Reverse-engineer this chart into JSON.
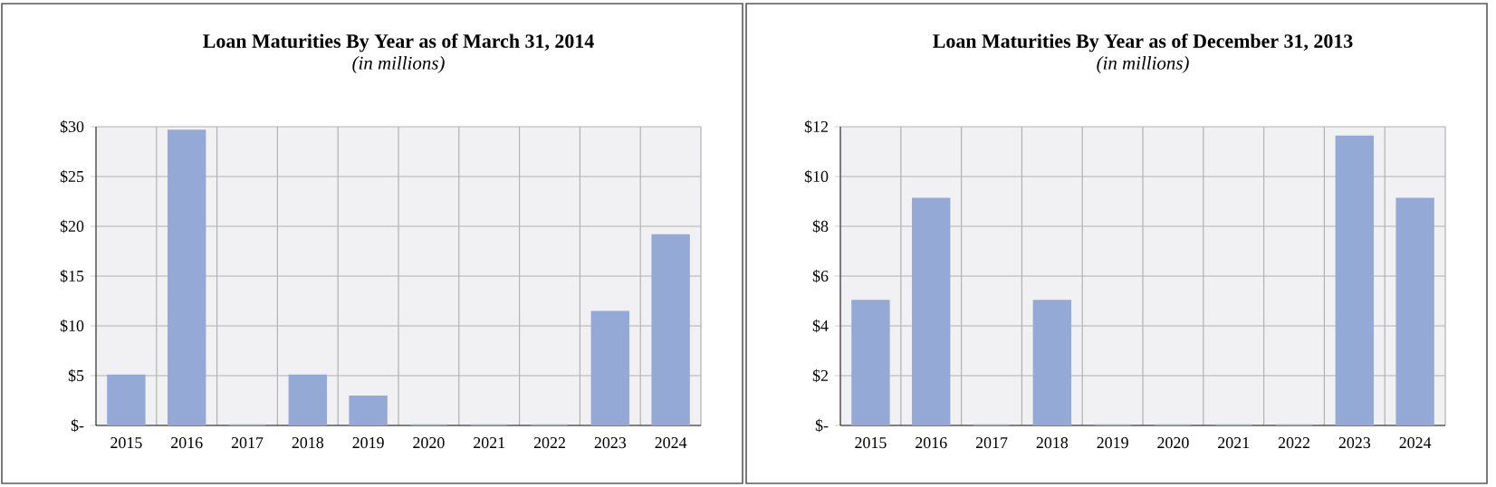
{
  "chart_data": [
    {
      "type": "bar",
      "title": "Loan Maturities By Year as of March 31, 2014",
      "subtitle": "(in millions)",
      "categories": [
        "2015",
        "2016",
        "2017",
        "2018",
        "2019",
        "2020",
        "2021",
        "2022",
        "2023",
        "2024"
      ],
      "values": [
        5,
        29.6,
        0,
        5,
        2.9,
        0,
        0,
        0,
        11.4,
        19.1
      ],
      "color": "#95a9d6",
      "ylim": [
        0,
        30
      ],
      "yticks": [
        {
          "value": 0,
          "label": "$-"
        },
        {
          "value": 5,
          "label": "$5"
        },
        {
          "value": 10,
          "label": "$10"
        },
        {
          "value": 15,
          "label": "$15"
        },
        {
          "value": 20,
          "label": "$20"
        },
        {
          "value": 25,
          "label": "$25"
        },
        {
          "value": 30,
          "label": "$30"
        }
      ],
      "grid": true
    },
    {
      "type": "bar",
      "title": "Loan Maturities By Year as of December 31, 2013",
      "subtitle": "(in millions)",
      "categories": [
        "2015",
        "2016",
        "2017",
        "2018",
        "2019",
        "2020",
        "2021",
        "2022",
        "2023",
        "2024"
      ],
      "values": [
        5,
        9.1,
        0,
        5,
        0,
        0,
        0,
        0,
        11.6,
        9.1
      ],
      "color": "#95a9d6",
      "ylim": [
        0,
        12
      ],
      "yticks": [
        {
          "value": 0,
          "label": "$-"
        },
        {
          "value": 2,
          "label": "$2"
        },
        {
          "value": 4,
          "label": "$4"
        },
        {
          "value": 6,
          "label": "$6"
        },
        {
          "value": 8,
          "label": "$8"
        },
        {
          "value": 10,
          "label": "$10"
        },
        {
          "value": 12,
          "label": "$12"
        }
      ],
      "grid": true
    }
  ]
}
